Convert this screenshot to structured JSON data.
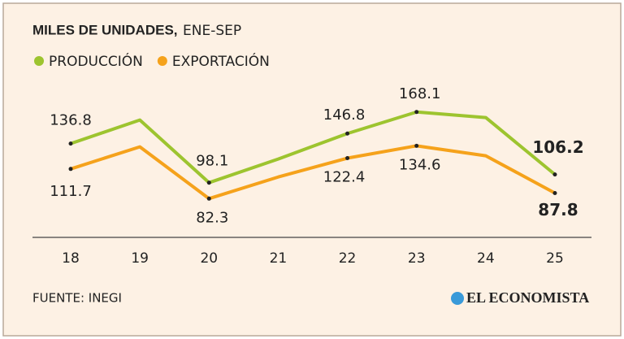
{
  "chart_data": {
    "type": "line",
    "title": "MILES DE UNIDADES,",
    "subtitle": "ENE-SEP",
    "categories": [
      "18",
      "19",
      "20",
      "21",
      "22",
      "23",
      "24",
      "25"
    ],
    "series": [
      {
        "name": "PRODUCCIÓN",
        "color": "#9dc42f",
        "values": [
          136.8,
          160.2,
          98.1,
          121.5,
          146.8,
          168.1,
          162.6,
          106.2
        ],
        "value_labels": [
          "136.8",
          null,
          "98.1",
          null,
          "146.8",
          "168.1",
          null,
          "106.2"
        ]
      },
      {
        "name": "EXPORTACIÓN",
        "color": "#f5a21b",
        "values": [
          111.7,
          133.6,
          82.3,
          103.7,
          122.4,
          134.6,
          124.7,
          87.8
        ],
        "value_labels": [
          "111.7",
          null,
          "82.3",
          null,
          "122.4",
          "134.6",
          null,
          "87.8"
        ]
      }
    ],
    "ylim": [
      60,
      180
    ],
    "source": "FUENTE: INEGI",
    "brand": "EL ECONOMISTA"
  }
}
